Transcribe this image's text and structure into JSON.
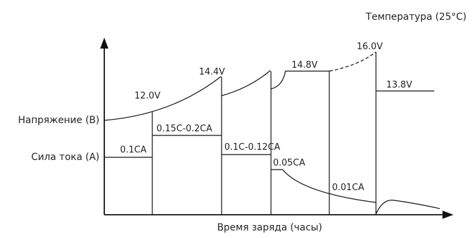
{
  "title": "Температура (25°C)",
  "axes": {
    "x_label": "Время заряда (часы)",
    "voltage_label": "Напряжение (В)",
    "current_label": "Сила тока (А)"
  },
  "voltage_labels": [
    "12.0V",
    "14.4V",
    "14.8V",
    "16.0V",
    "13.8V"
  ],
  "current_labels": [
    "0.1CA",
    "0.15C-0.2CA",
    "0.1C-0.12CA",
    "0.05CA",
    "0.01CA"
  ],
  "colors": {
    "line": "#111111",
    "text": "#222222",
    "background": "#ffffff"
  }
}
